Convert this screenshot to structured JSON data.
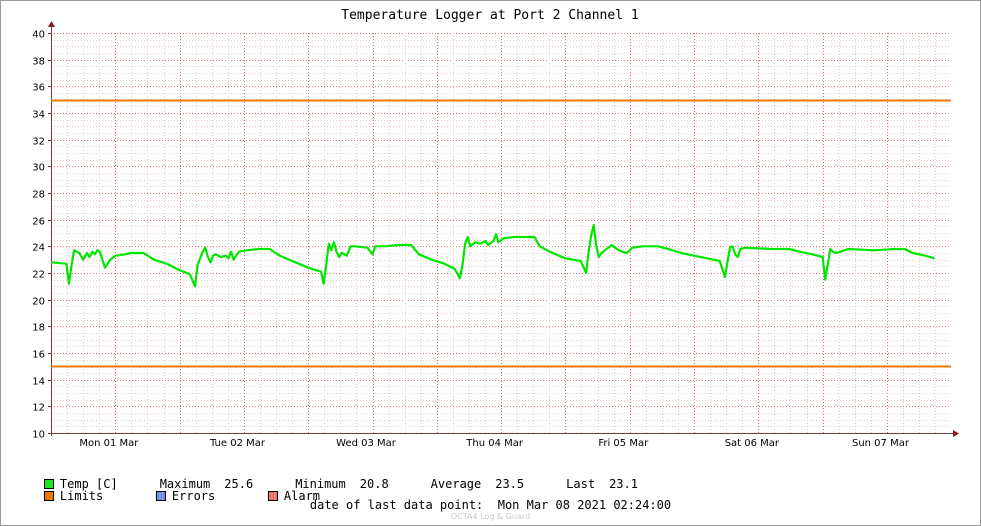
{
  "chart_data": {
    "type": "line",
    "title": "Temperature Logger at Port 2 Channel 1",
    "ylim": [
      10,
      40
    ],
    "y_ticks": [
      "10",
      "12",
      "14",
      "16",
      "18",
      "20",
      "22",
      "24",
      "26",
      "28",
      "30",
      "32",
      "34",
      "36",
      "38",
      "40"
    ],
    "x_ticks": [
      "Mon 01 Mar",
      "Tue 02 Mar",
      "Wed 03 Mar",
      "Thu 04 Mar",
      "Fri 05 Mar",
      "Sat 06 Mar",
      "Sun 07 Mar"
    ],
    "grid": true,
    "limits": {
      "upper": 35.0,
      "lower": 15.0
    },
    "series": [
      {
        "name": "Temp [C]",
        "color": "#00e600",
        "points": [
          [
            0.0,
            22.8
          ],
          [
            0.12,
            22.7
          ],
          [
            0.14,
            21.2
          ],
          [
            0.16,
            22.6
          ],
          [
            0.18,
            23.7
          ],
          [
            0.22,
            23.5
          ],
          [
            0.25,
            23.0
          ],
          [
            0.28,
            23.5
          ],
          [
            0.3,
            23.2
          ],
          [
            0.32,
            23.6
          ],
          [
            0.34,
            23.4
          ],
          [
            0.36,
            23.7
          ],
          [
            0.38,
            23.6
          ],
          [
            0.4,
            23.0
          ],
          [
            0.42,
            22.4
          ],
          [
            0.44,
            22.7
          ],
          [
            0.46,
            23.0
          ],
          [
            0.5,
            23.3
          ],
          [
            0.58,
            23.4
          ],
          [
            0.62,
            23.5
          ],
          [
            0.72,
            23.5
          ],
          [
            0.8,
            23.0
          ],
          [
            0.9,
            22.7
          ],
          [
            0.98,
            22.3
          ],
          [
            1.08,
            21.9
          ],
          [
            1.12,
            21.0
          ],
          [
            1.14,
            22.6
          ],
          [
            1.18,
            23.6
          ],
          [
            1.2,
            23.9
          ],
          [
            1.22,
            23.2
          ],
          [
            1.24,
            22.8
          ],
          [
            1.26,
            23.3
          ],
          [
            1.28,
            23.4
          ],
          [
            1.32,
            23.2
          ],
          [
            1.36,
            23.3
          ],
          [
            1.38,
            23.1
          ],
          [
            1.4,
            23.6
          ],
          [
            1.42,
            23.0
          ],
          [
            1.46,
            23.6
          ],
          [
            1.52,
            23.7
          ],
          [
            1.62,
            23.8
          ],
          [
            1.7,
            23.8
          ],
          [
            1.78,
            23.3
          ],
          [
            1.9,
            22.8
          ],
          [
            2.0,
            22.4
          ],
          [
            2.1,
            22.1
          ],
          [
            2.12,
            21.2
          ],
          [
            2.14,
            22.6
          ],
          [
            2.16,
            24.2
          ],
          [
            2.18,
            23.7
          ],
          [
            2.2,
            24.3
          ],
          [
            2.22,
            23.6
          ],
          [
            2.24,
            23.2
          ],
          [
            2.26,
            23.5
          ],
          [
            2.3,
            23.3
          ],
          [
            2.33,
            24.0
          ],
          [
            2.36,
            24.0
          ],
          [
            2.46,
            23.9
          ],
          [
            2.5,
            23.4
          ],
          [
            2.52,
            24.0
          ],
          [
            2.6,
            24.0
          ],
          [
            2.7,
            24.1
          ],
          [
            2.8,
            24.1
          ],
          [
            2.86,
            23.4
          ],
          [
            2.96,
            23.0
          ],
          [
            3.06,
            22.7
          ],
          [
            3.14,
            22.3
          ],
          [
            3.18,
            21.6
          ],
          [
            3.2,
            22.6
          ],
          [
            3.22,
            24.2
          ],
          [
            3.24,
            24.7
          ],
          [
            3.26,
            24.0
          ],
          [
            3.3,
            24.3
          ],
          [
            3.34,
            24.2
          ],
          [
            3.38,
            24.4
          ],
          [
            3.4,
            24.1
          ],
          [
            3.44,
            24.4
          ],
          [
            3.46,
            24.9
          ],
          [
            3.48,
            24.3
          ],
          [
            3.52,
            24.6
          ],
          [
            3.6,
            24.7
          ],
          [
            3.7,
            24.7
          ],
          [
            3.76,
            24.7
          ],
          [
            3.8,
            24.0
          ],
          [
            3.9,
            23.5
          ],
          [
            4.0,
            23.1
          ],
          [
            4.12,
            22.9
          ],
          [
            4.16,
            22.0
          ],
          [
            4.18,
            23.5
          ],
          [
            4.2,
            24.8
          ],
          [
            4.22,
            25.6
          ],
          [
            4.24,
            24.0
          ],
          [
            4.26,
            23.2
          ],
          [
            4.28,
            23.5
          ],
          [
            4.32,
            23.8
          ],
          [
            4.36,
            24.1
          ],
          [
            4.4,
            23.8
          ],
          [
            4.44,
            23.6
          ],
          [
            4.48,
            23.5
          ],
          [
            4.52,
            23.9
          ],
          [
            4.6,
            24.0
          ],
          [
            4.72,
            24.0
          ],
          [
            4.8,
            23.8
          ],
          [
            4.9,
            23.5
          ],
          [
            5.0,
            23.3
          ],
          [
            5.1,
            23.1
          ],
          [
            5.2,
            22.9
          ],
          [
            5.24,
            21.7
          ],
          [
            5.26,
            22.8
          ],
          [
            5.28,
            23.9
          ],
          [
            5.3,
            24.0
          ],
          [
            5.32,
            23.4
          ],
          [
            5.34,
            23.2
          ],
          [
            5.36,
            23.8
          ],
          [
            5.4,
            23.9
          ],
          [
            5.6,
            23.8
          ],
          [
            5.74,
            23.8
          ],
          [
            5.82,
            23.6
          ],
          [
            5.92,
            23.4
          ],
          [
            6.0,
            23.2
          ],
          [
            6.02,
            21.5
          ],
          [
            6.04,
            22.6
          ],
          [
            6.06,
            23.8
          ],
          [
            6.08,
            23.6
          ],
          [
            6.1,
            23.5
          ],
          [
            6.14,
            23.6
          ],
          [
            6.2,
            23.8
          ],
          [
            6.4,
            23.7
          ],
          [
            6.56,
            23.8
          ],
          [
            6.64,
            23.8
          ],
          [
            6.7,
            23.5
          ],
          [
            6.8,
            23.3
          ],
          [
            6.87,
            23.1
          ]
        ]
      }
    ]
  },
  "legend": {
    "temp_label": "Temp [C]",
    "limits_label": "Limits",
    "errors_label": "Errors",
    "alarm_label": "Alarm",
    "temp_color": "#1ee61e",
    "limits_color": "#f07800",
    "errors_color": "#7a8cf0",
    "alarm_color": "#f07878"
  },
  "stats": {
    "maximum_label": "Maximum",
    "maximum_value": "25.6",
    "minimum_label": "Minimum",
    "minimum_value": "20.8",
    "average_label": "Average",
    "average_value": "23.5",
    "last_label": "Last",
    "last_value": "23.1"
  },
  "footer": {
    "label": "date of last data point:",
    "value": "Mon Mar 08 2021 02:24:00"
  },
  "watermark": "OCTA4 Log & Guard"
}
